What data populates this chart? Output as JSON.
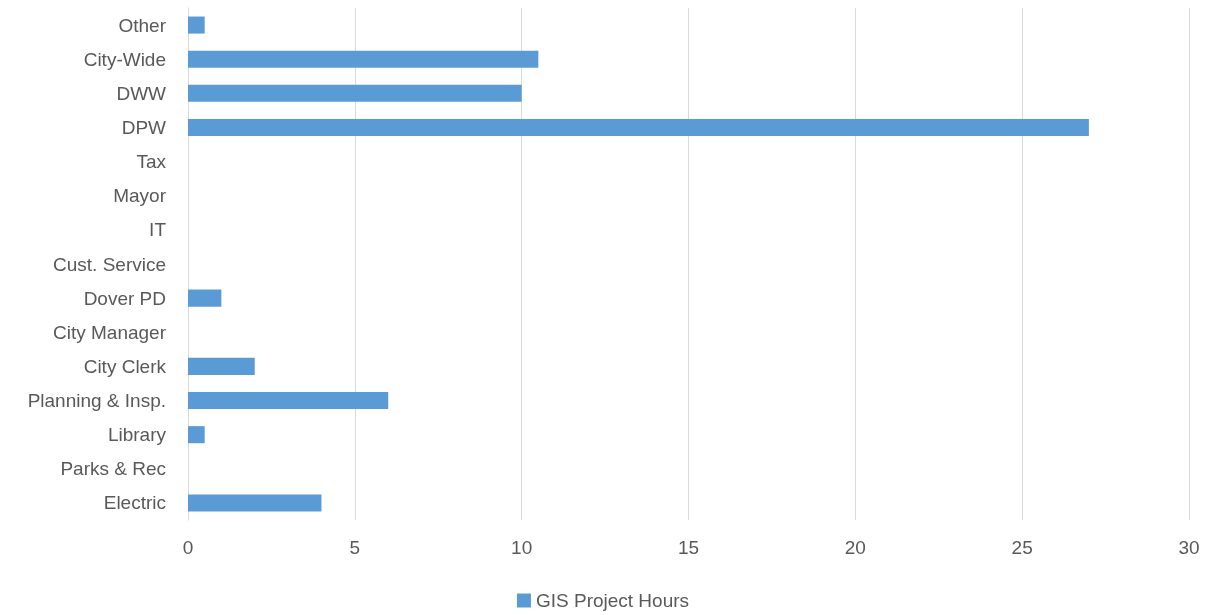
{
  "chart_data": {
    "type": "bar",
    "orientation": "horizontal",
    "categories": [
      "Other",
      "City-Wide",
      "DWW",
      "DPW",
      "Tax",
      "Mayor",
      "IT",
      "Cust. Service",
      "Dover PD",
      "City Manager",
      "City Clerk",
      "Planning & Insp.",
      "Library",
      "Parks & Rec",
      "Electric"
    ],
    "series": [
      {
        "name": "GIS Project Hours",
        "color": "#5b9bd5",
        "values": [
          0.5,
          10.5,
          10,
          27,
          0,
          0,
          0,
          0,
          1,
          0,
          2,
          6,
          0.5,
          0,
          4
        ]
      }
    ],
    "xlim": [
      0,
      30
    ],
    "xticks": [
      0,
      5,
      10,
      15,
      20,
      25,
      30
    ],
    "grid": "x",
    "legend": "bottom"
  }
}
